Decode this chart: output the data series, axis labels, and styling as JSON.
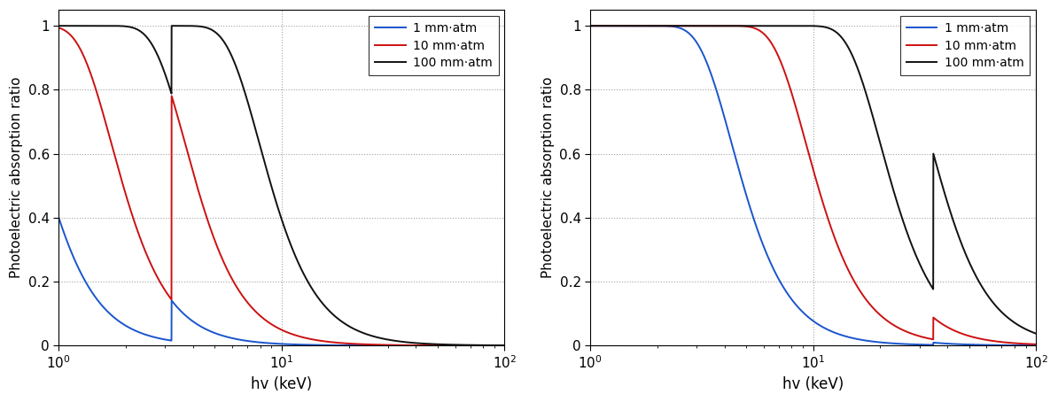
{
  "xlim": [
    1,
    100
  ],
  "ylim": [
    -0.02,
    1.05
  ],
  "xlabel": "hv (keV)",
  "ylabel": "Photoelectric absorption ratio",
  "legend_labels": [
    "1 mm·atm",
    "10 mm·atm",
    "100 mm·atm"
  ],
  "colors": [
    "#1a55cc",
    "#cc1111",
    "#111111"
  ],
  "background": "#ffffff",
  "grid_color": "#999999",
  "argon_kedge": 3.206,
  "xenon_kedge": 34.56,
  "linewidth": 1.4,
  "ar_scale": 1.0,
  "xe_scale": 1.0
}
